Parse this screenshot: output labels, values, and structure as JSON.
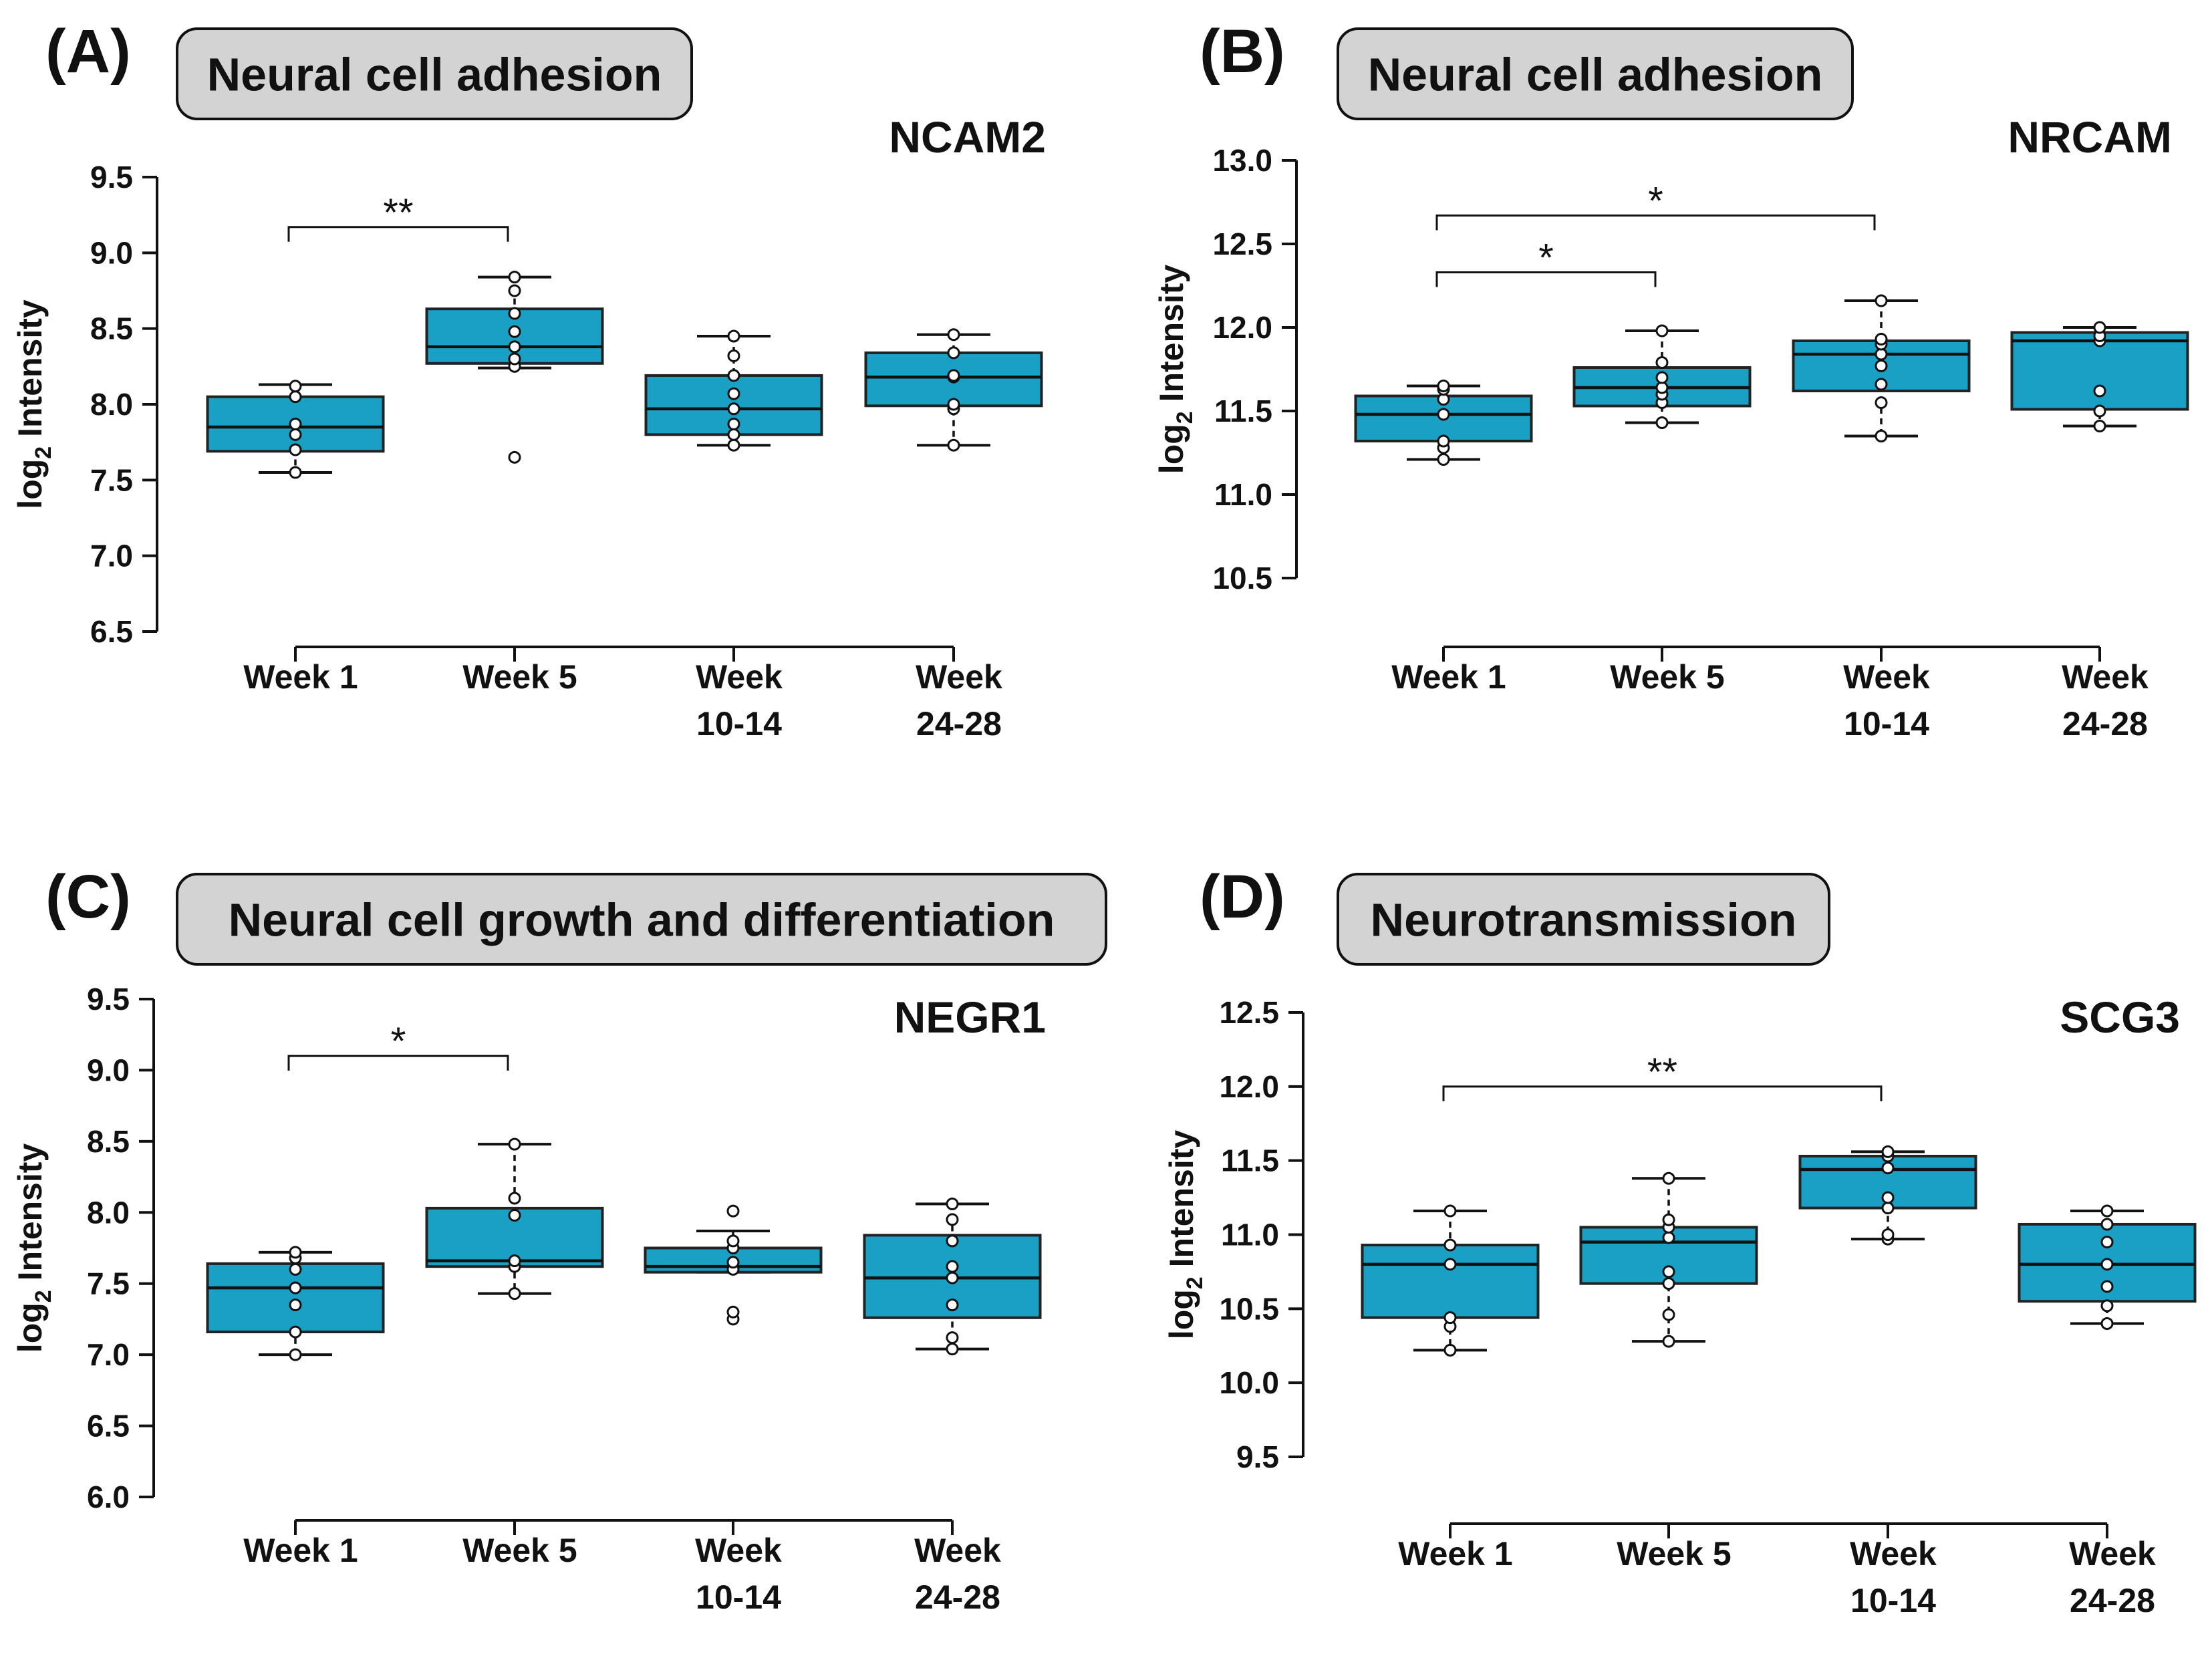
{
  "style": {
    "box_fill": "#1aa0c4",
    "box_stroke": "#222222",
    "point_fill": "#ffffff",
    "title_fill": "#d3d3d3",
    "ink": "#111111"
  },
  "chart_data": [
    {
      "type": "box",
      "panel": "(A)",
      "category": "Neural cell adhesion",
      "title": "NCAM2",
      "ylabel": "log2 Intensity",
      "ylabel_main": "log",
      "ylabel_sub": "2",
      "ylabel_rest": " Intensity",
      "ylim": [
        6.5,
        9.5
      ],
      "yticks": [
        6.5,
        7.0,
        7.5,
        8.0,
        8.5,
        9.0,
        9.5
      ],
      "ytick_labels": [
        "6.5",
        "7.0",
        "7.5",
        "8.0",
        "8.5",
        "9.0",
        "9.5"
      ],
      "groups": [
        {
          "label": [
            "Week 1"
          ],
          "q1": 7.69,
          "median": 7.85,
          "q3": 8.05,
          "whisker_low": 7.55,
          "whisker_high": 8.13,
          "points": [
            7.55,
            7.7,
            7.8,
            7.87,
            8.05,
            8.12
          ]
        },
        {
          "label": [
            "Week 5"
          ],
          "q1": 8.27,
          "median": 8.38,
          "q3": 8.63,
          "whisker_low": 8.24,
          "whisker_high": 8.84,
          "points": [
            7.65,
            8.25,
            8.3,
            8.38,
            8.48,
            8.6,
            8.75,
            8.84
          ]
        },
        {
          "label": [
            "Week",
            "10-14"
          ],
          "q1": 7.8,
          "median": 7.97,
          "q3": 8.19,
          "whisker_low": 7.73,
          "whisker_high": 8.45,
          "points": [
            7.73,
            7.8,
            7.87,
            7.97,
            8.07,
            8.19,
            8.32,
            8.45
          ]
        },
        {
          "label": [
            "Week",
            "24-28"
          ],
          "q1": 7.99,
          "median": 8.18,
          "q3": 8.34,
          "whisker_low": 7.73,
          "whisker_high": 8.46,
          "points": [
            7.73,
            7.97,
            8.0,
            8.18,
            8.19,
            8.34,
            8.46
          ]
        }
      ],
      "significance": [
        {
          "from": 0,
          "to": 1,
          "y": 9.17,
          "label": "**"
        }
      ]
    },
    {
      "type": "box",
      "panel": "(B)",
      "category": "Neural cell adhesion",
      "title": "NRCAM",
      "ylabel": "log2 Intensity",
      "ylabel_main": "log",
      "ylabel_sub": "2",
      "ylabel_rest": " Intensity",
      "ylim": [
        10.5,
        13.0
      ],
      "yticks": [
        10.5,
        11.0,
        11.5,
        12.0,
        12.5,
        13.0
      ],
      "ytick_labels": [
        "10.5",
        "11.0",
        "11.5",
        "12.0",
        "12.5",
        "13.0"
      ],
      "groups": [
        {
          "label": [
            "Week 1"
          ],
          "q1": 11.32,
          "median": 11.48,
          "q3": 11.59,
          "whisker_low": 11.21,
          "whisker_high": 11.65,
          "points": [
            11.21,
            11.28,
            11.32,
            11.48,
            11.57,
            11.63,
            11.65
          ]
        },
        {
          "label": [
            "Week 5"
          ],
          "q1": 11.53,
          "median": 11.64,
          "q3": 11.76,
          "whisker_low": 11.43,
          "whisker_high": 11.98,
          "points": [
            11.43,
            11.55,
            11.6,
            11.64,
            11.7,
            11.79,
            11.98
          ]
        },
        {
          "label": [
            "Week",
            "10-14"
          ],
          "q1": 11.62,
          "median": 11.84,
          "q3": 11.92,
          "whisker_low": 11.35,
          "whisker_high": 12.16,
          "points": [
            11.35,
            11.55,
            11.66,
            11.77,
            11.84,
            11.9,
            11.93,
            12.16
          ]
        },
        {
          "label": [
            "Week",
            "24-28"
          ],
          "q1": 11.51,
          "median": 11.92,
          "q3": 11.97,
          "whisker_low": 11.41,
          "whisker_high": 12.0,
          "points": [
            11.41,
            11.5,
            11.62,
            11.92,
            11.95,
            12.0
          ]
        }
      ],
      "significance": [
        {
          "from": 0,
          "to": 2,
          "y": 12.67,
          "label": "*"
        },
        {
          "from": 0,
          "to": 1,
          "y": 12.33,
          "label": "*"
        }
      ]
    },
    {
      "type": "box",
      "panel": "(C)",
      "category": "Neural cell growth and differentiation",
      "title": "NEGR1",
      "ylabel": "log2 Intensity",
      "ylabel_main": "log",
      "ylabel_sub": "2",
      "ylabel_rest": " Intensity",
      "ylim": [
        6.0,
        9.5
      ],
      "yticks": [
        6.0,
        6.5,
        7.0,
        7.5,
        8.0,
        8.5,
        9.0,
        9.5
      ],
      "ytick_labels": [
        "6.0",
        "6.5",
        "7.0",
        "7.5",
        "8.0",
        "8.5",
        "9.0",
        "9.5"
      ],
      "groups": [
        {
          "label": [
            "Week 1"
          ],
          "q1": 7.16,
          "median": 7.47,
          "q3": 7.64,
          "whisker_low": 7.0,
          "whisker_high": 7.72,
          "points": [
            7.0,
            7.16,
            7.35,
            7.47,
            7.6,
            7.68,
            7.72
          ]
        },
        {
          "label": [
            "Week 5"
          ],
          "q1": 7.62,
          "median": 7.66,
          "q3": 8.03,
          "whisker_low": 7.43,
          "whisker_high": 8.48,
          "points": [
            7.43,
            7.62,
            7.66,
            7.98,
            8.1,
            8.48
          ]
        },
        {
          "label": [
            "Week",
            "10-14"
          ],
          "q1": 7.58,
          "median": 7.62,
          "q3": 7.75,
          "whisker_low": 7.58,
          "whisker_high": 7.87,
          "points": [
            7.25,
            7.3,
            7.6,
            7.65,
            7.75,
            7.8,
            8.01
          ]
        },
        {
          "label": [
            "Week",
            "24-28"
          ],
          "q1": 7.26,
          "median": 7.54,
          "q3": 7.84,
          "whisker_low": 7.04,
          "whisker_high": 8.06,
          "points": [
            7.04,
            7.12,
            7.35,
            7.54,
            7.62,
            7.8,
            7.95,
            8.06
          ]
        }
      ],
      "significance": [
        {
          "from": 0,
          "to": 1,
          "y": 9.1,
          "label": "*"
        }
      ]
    },
    {
      "type": "box",
      "panel": "(D)",
      "category": "Neurotransmission",
      "title": "SCG3",
      "ylabel": "log2 Intensity",
      "ylabel_main": "log",
      "ylabel_sub": "2",
      "ylabel_rest": " Intensity",
      "ylim": [
        9.5,
        12.5
      ],
      "yticks": [
        9.5,
        10.0,
        10.5,
        11.0,
        11.5,
        12.0,
        12.5
      ],
      "ytick_labels": [
        "9.5",
        "10.0",
        "10.5",
        "11.0",
        "11.5",
        "12.0",
        "12.5"
      ],
      "groups": [
        {
          "label": [
            "Week 1"
          ],
          "q1": 10.44,
          "median": 10.8,
          "q3": 10.93,
          "whisker_low": 10.22,
          "whisker_high": 11.16,
          "points": [
            10.22,
            10.38,
            10.44,
            10.8,
            10.93,
            11.16
          ]
        },
        {
          "label": [
            "Week 5"
          ],
          "q1": 10.67,
          "median": 10.95,
          "q3": 11.05,
          "whisker_low": 10.28,
          "whisker_high": 11.38,
          "points": [
            10.28,
            10.46,
            10.67,
            10.75,
            10.98,
            11.05,
            11.1,
            11.38
          ]
        },
        {
          "label": [
            "Week",
            "10-14"
          ],
          "q1": 11.18,
          "median": 11.44,
          "q3": 11.53,
          "whisker_low": 10.97,
          "whisker_high": 11.56,
          "points": [
            10.97,
            11.0,
            11.18,
            11.25,
            11.45,
            11.53,
            11.56
          ]
        },
        {
          "label": [
            "Week",
            "24-28"
          ],
          "q1": 10.55,
          "median": 10.8,
          "q3": 11.07,
          "whisker_low": 10.4,
          "whisker_high": 11.16,
          "points": [
            10.4,
            10.52,
            10.65,
            10.8,
            10.95,
            11.07,
            11.16
          ]
        }
      ],
      "significance": [
        {
          "from": 0,
          "to": 2,
          "y": 12.0,
          "label": "**"
        }
      ]
    }
  ]
}
